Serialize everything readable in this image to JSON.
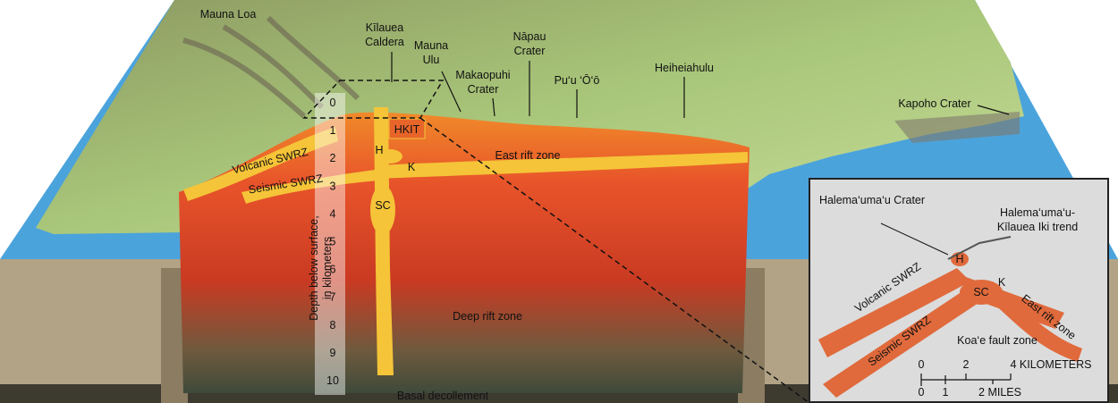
{
  "surface_labels": [
    {
      "lines": [
        "Mauna Loa"
      ]
    },
    {
      "lines": [
        "Kīlauea",
        "Caldera"
      ]
    },
    {
      "lines": [
        "Mauna",
        "Ulu"
      ]
    },
    {
      "lines": [
        "Makaopuhi",
        "Crater"
      ]
    },
    {
      "lines": [
        "Nāpau",
        "Crater"
      ]
    },
    {
      "lines": [
        "Pu‘u ‘Ō‘ō"
      ]
    },
    {
      "lines": [
        "Heiheiahulu"
      ]
    },
    {
      "lines": [
        "Kapoho Crater"
      ]
    }
  ],
  "section_labels": [
    "HKIT",
    "H",
    "K",
    "SC",
    "Volcanic SWRZ",
    "Seismic SWRZ",
    "East rift zone",
    "Deep rift zone",
    "Basal decollement"
  ],
  "depth_axis": {
    "title_lines": [
      "Depth below surface,",
      "in kilometers"
    ],
    "ticks": [
      0,
      1,
      2,
      3,
      4,
      5,
      6,
      7,
      8,
      9,
      10
    ]
  },
  "inset": {
    "labels": [
      {
        "lines": [
          "Halema‘uma‘u Crater"
        ]
      },
      {
        "lines": [
          "Halema‘uma‘u-",
          "Kīlauea Iki trend"
        ]
      },
      {
        "lines": [
          "H"
        ]
      },
      {
        "lines": [
          "SC"
        ]
      },
      {
        "lines": [
          "K"
        ]
      },
      {
        "lines": [
          "Volcanic SWRZ"
        ]
      },
      {
        "lines": [
          "Seismic SWRZ"
        ]
      },
      {
        "lines": [
          "East rift zone"
        ]
      },
      {
        "lines": [
          "Koa‘e fault zone"
        ]
      }
    ],
    "scale_km": [
      "0",
      "2",
      "4 KILOMETERS"
    ],
    "scale_miles": [
      "0",
      "1",
      "2 MILES"
    ]
  }
}
